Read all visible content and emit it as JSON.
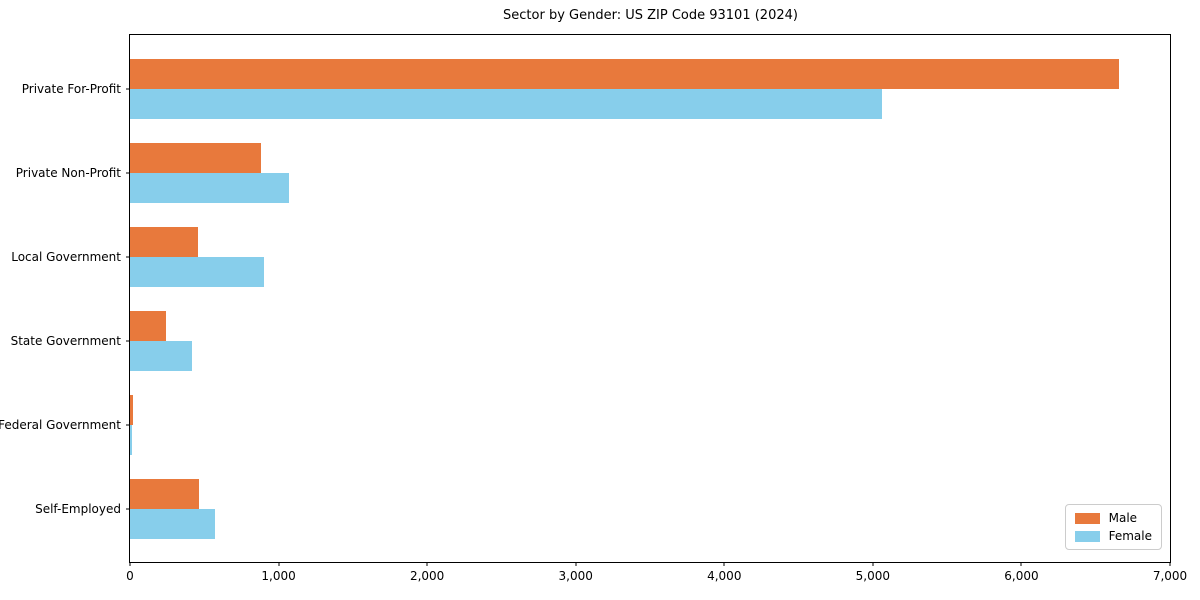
{
  "figure": {
    "title": "Sector by Gender: US ZIP Code 93101 (2024)"
  },
  "chart_data": {
    "type": "bar",
    "orientation": "horizontal",
    "title": "Sector by Gender: US ZIP Code 93101 (2024)",
    "categories": [
      "Private For-Profit",
      "Private Non-Profit",
      "Local Government",
      "State Government",
      "Federal Government",
      "Self-Employed"
    ],
    "series": [
      {
        "name": "Male",
        "color": "#e8793c",
        "values": [
          6660,
          880,
          460,
          240,
          20,
          465
        ]
      },
      {
        "name": "Female",
        "color": "#87ceeb",
        "values": [
          5060,
          1070,
          905,
          415,
          15,
          575
        ]
      }
    ],
    "xlabel": "",
    "ylabel": "",
    "xlim": [
      0,
      7000
    ],
    "x_ticks": [
      0,
      1000,
      2000,
      3000,
      4000,
      5000,
      6000,
      7000
    ],
    "x_tick_labels": [
      "0",
      "1,000",
      "2,000",
      "3,000",
      "4,000",
      "5,000",
      "6,000",
      "7,000"
    ],
    "grid": false,
    "legend_position": "lower right",
    "plot_background": "#ffffff",
    "spine_color": "#000000"
  }
}
